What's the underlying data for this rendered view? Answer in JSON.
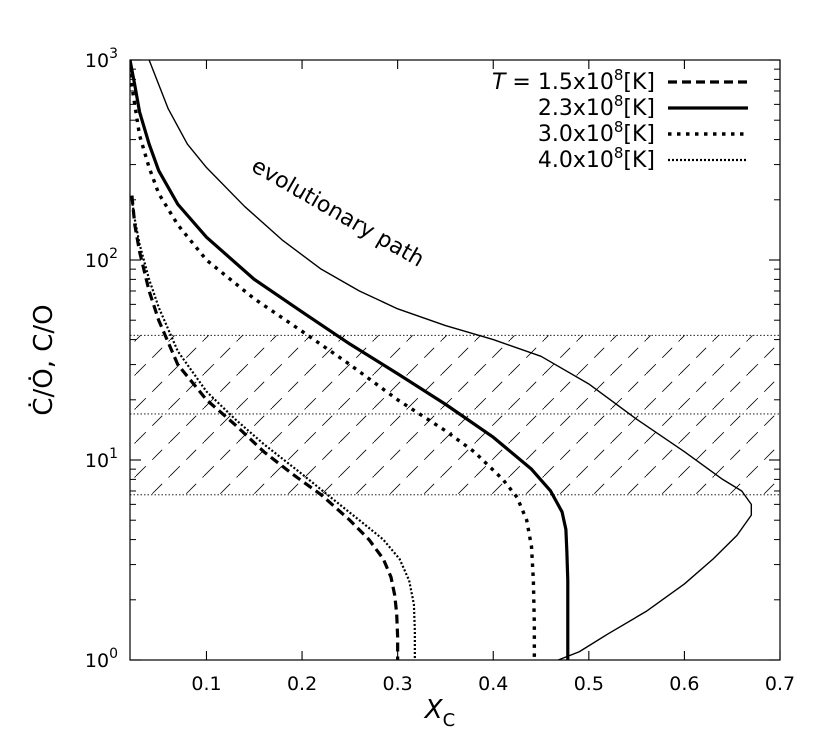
{
  "chart_data": {
    "type": "line",
    "xlabel": {
      "main": "X",
      "sub": "C"
    },
    "ylabel": "Ċ/Ȯ, C/O",
    "xlim": [
      0.02,
      0.7
    ],
    "ylim": [
      1,
      1000
    ],
    "yscale": "log",
    "x_ticks": [
      0.1,
      0.2,
      0.3,
      0.4,
      0.5,
      0.6,
      0.7
    ],
    "x_tick_labels": [
      "0.1",
      "0.2",
      "0.3",
      "0.4",
      "0.5",
      "0.6",
      "0.7"
    ],
    "y_ticks": [
      {
        "value": 1,
        "base": "10",
        "exp": "0"
      },
      {
        "value": 10,
        "base": "10",
        "exp": "1"
      },
      {
        "value": 100,
        "base": "10",
        "exp": "2"
      },
      {
        "value": 1000,
        "base": "10",
        "exp": "3"
      }
    ],
    "legend": {
      "position": "top-right",
      "prefix": "T",
      "entries": [
        {
          "label_main": " = 1.5x10",
          "exp": "8",
          "unit": "[K]"
        },
        {
          "label_main": "2.3x10",
          "exp": "8",
          "unit": "[K]"
        },
        {
          "label_main": "3.0x10",
          "exp": "8",
          "unit": "[K]"
        },
        {
          "label_main": "4.0x10",
          "exp": "8",
          "unit": "[K]"
        }
      ]
    },
    "shaded_band": {
      "y_min": 6.7,
      "y_max": 42,
      "middle_line": 17,
      "pattern": "dashed diagonal hatch"
    },
    "annotation": {
      "text": "evolutionary path"
    },
    "series": [
      {
        "style": "dashed-thick",
        "points": [
          [
            0.022,
            210
          ],
          [
            0.025,
            150
          ],
          [
            0.03,
            110
          ],
          [
            0.04,
            70
          ],
          [
            0.05,
            50
          ],
          [
            0.07,
            30
          ],
          [
            0.1,
            20
          ],
          [
            0.13,
            15
          ],
          [
            0.16,
            11
          ],
          [
            0.19,
            8.5
          ],
          [
            0.22,
            6.7
          ],
          [
            0.25,
            5.0
          ],
          [
            0.27,
            4.0
          ],
          [
            0.285,
            3.2
          ],
          [
            0.293,
            2.6
          ],
          [
            0.297,
            2.1
          ],
          [
            0.299,
            1.7
          ],
          [
            0.3,
            1.3
          ],
          [
            0.3,
            1.0
          ]
        ]
      },
      {
        "style": "solid-thick",
        "points": [
          [
            0.02,
            1000
          ],
          [
            0.025,
            750
          ],
          [
            0.03,
            550
          ],
          [
            0.04,
            380
          ],
          [
            0.05,
            280
          ],
          [
            0.07,
            190
          ],
          [
            0.1,
            130
          ],
          [
            0.15,
            80
          ],
          [
            0.2,
            55
          ],
          [
            0.25,
            38
          ],
          [
            0.3,
            27
          ],
          [
            0.35,
            19
          ],
          [
            0.4,
            13
          ],
          [
            0.44,
            9
          ],
          [
            0.46,
            7
          ],
          [
            0.472,
            5.5
          ],
          [
            0.476,
            4.5
          ],
          [
            0.477,
            3.5
          ],
          [
            0.478,
            2.5
          ],
          [
            0.478,
            1.0
          ]
        ]
      },
      {
        "style": "dotted-thick",
        "points": [
          [
            0.02,
            850
          ],
          [
            0.03,
            420
          ],
          [
            0.04,
            290
          ],
          [
            0.05,
            215
          ],
          [
            0.07,
            150
          ],
          [
            0.1,
            100
          ],
          [
            0.15,
            64
          ],
          [
            0.2,
            44
          ],
          [
            0.25,
            30
          ],
          [
            0.3,
            20
          ],
          [
            0.35,
            14
          ],
          [
            0.38,
            11
          ],
          [
            0.41,
            8
          ],
          [
            0.425,
            6.5
          ],
          [
            0.435,
            5.0
          ],
          [
            0.44,
            3.7
          ],
          [
            0.442,
            2.5
          ],
          [
            0.443,
            1.5
          ],
          [
            0.443,
            1.0
          ]
        ]
      },
      {
        "style": "dotted-fine",
        "points": [
          [
            0.022,
            200
          ],
          [
            0.025,
            160
          ],
          [
            0.03,
            120
          ],
          [
            0.04,
            80
          ],
          [
            0.05,
            58
          ],
          [
            0.07,
            35
          ],
          [
            0.1,
            22
          ],
          [
            0.13,
            16
          ],
          [
            0.16,
            12
          ],
          [
            0.2,
            8.5
          ],
          [
            0.23,
            6.5
          ],
          [
            0.26,
            5.0
          ],
          [
            0.285,
            4.0
          ],
          [
            0.302,
            3.2
          ],
          [
            0.312,
            2.5
          ],
          [
            0.317,
            1.9
          ],
          [
            0.318,
            1.4
          ],
          [
            0.318,
            1.0
          ]
        ]
      },
      {
        "style": "solid-thin",
        "points": [
          [
            0.04,
            1000
          ],
          [
            0.06,
            570
          ],
          [
            0.08,
            380
          ],
          [
            0.1,
            290
          ],
          [
            0.14,
            185
          ],
          [
            0.18,
            125
          ],
          [
            0.22,
            90
          ],
          [
            0.26,
            70
          ],
          [
            0.3,
            57
          ],
          [
            0.35,
            47
          ],
          [
            0.4,
            40
          ],
          [
            0.45,
            33
          ],
          [
            0.5,
            24
          ],
          [
            0.55,
            16
          ],
          [
            0.6,
            11
          ],
          [
            0.64,
            8
          ],
          [
            0.66,
            7
          ],
          [
            0.67,
            6
          ],
          [
            0.67,
            5.3
          ],
          [
            0.655,
            4.2
          ],
          [
            0.63,
            3.2
          ],
          [
            0.6,
            2.4
          ],
          [
            0.56,
            1.75
          ],
          [
            0.52,
            1.35
          ],
          [
            0.49,
            1.1
          ],
          [
            0.468,
            1.0
          ]
        ]
      }
    ]
  }
}
